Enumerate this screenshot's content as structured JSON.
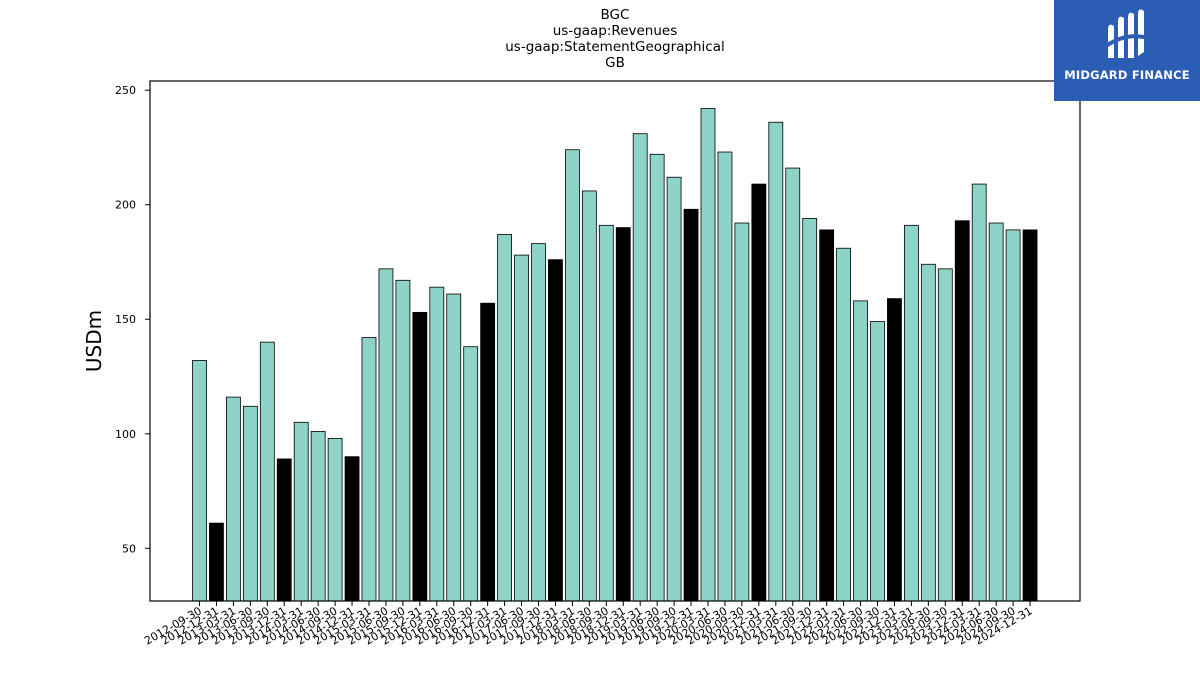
{
  "chart_data": {
    "type": "bar",
    "title_lines": [
      "BGC",
      "us-gaap:Revenues",
      "us-gaap:StatementGeographical",
      "GB"
    ],
    "xlabel": "",
    "ylabel": "USDm",
    "ylim": [
      27,
      254
    ],
    "yticks": [
      50,
      100,
      150,
      200,
      250
    ],
    "grid": false,
    "legend": "none",
    "colors": {
      "quarter": "#8dd3c7",
      "year_end": "#000000",
      "edge": "#000000"
    },
    "categories": [
      "2012-09-30",
      "2012-12-31",
      "2013-03-31",
      "2013-06-30",
      "2013-09-30",
      "2013-12-31",
      "2014-03-31",
      "2014-06-30",
      "2014-09-30",
      "2014-12-31",
      "2015-03-31",
      "2015-06-30",
      "2015-09-30",
      "2015-12-31",
      "2016-03-31",
      "2016-06-30",
      "2016-09-30",
      "2016-12-31",
      "2017-03-31",
      "2017-06-30",
      "2017-09-30",
      "2017-12-31",
      "2018-03-31",
      "2018-06-30",
      "2018-09-30",
      "2018-12-31",
      "2019-03-31",
      "2019-06-30",
      "2019-09-30",
      "2019-12-31",
      "2020-03-31",
      "2020-06-30",
      "2020-09-30",
      "2020-12-31",
      "2021-03-31",
      "2021-06-30",
      "2021-09-30",
      "2021-12-31",
      "2022-03-31",
      "2022-06-30",
      "2022-09-30",
      "2022-12-31",
      "2023-03-31",
      "2023-06-30",
      "2023-09-30",
      "2023-12-31",
      "2024-03-31",
      "2024-06-30",
      "2024-09-30",
      "2024-12-31"
    ],
    "values": [
      132,
      61,
      116,
      112,
      140,
      89,
      105,
      101,
      98,
      90,
      142,
      172,
      167,
      153,
      164,
      161,
      138,
      157,
      187,
      178,
      183,
      176,
      224,
      206,
      191,
      190,
      231,
      222,
      212,
      198,
      242,
      223,
      192,
      209,
      236,
      216,
      194,
      189,
      181,
      158,
      149,
      159,
      191,
      174,
      172,
      193,
      209,
      192,
      189,
      189
    ]
  },
  "logo": {
    "text": "MIDGARD FINANCE",
    "icon": "midgard-logo-icon"
  }
}
